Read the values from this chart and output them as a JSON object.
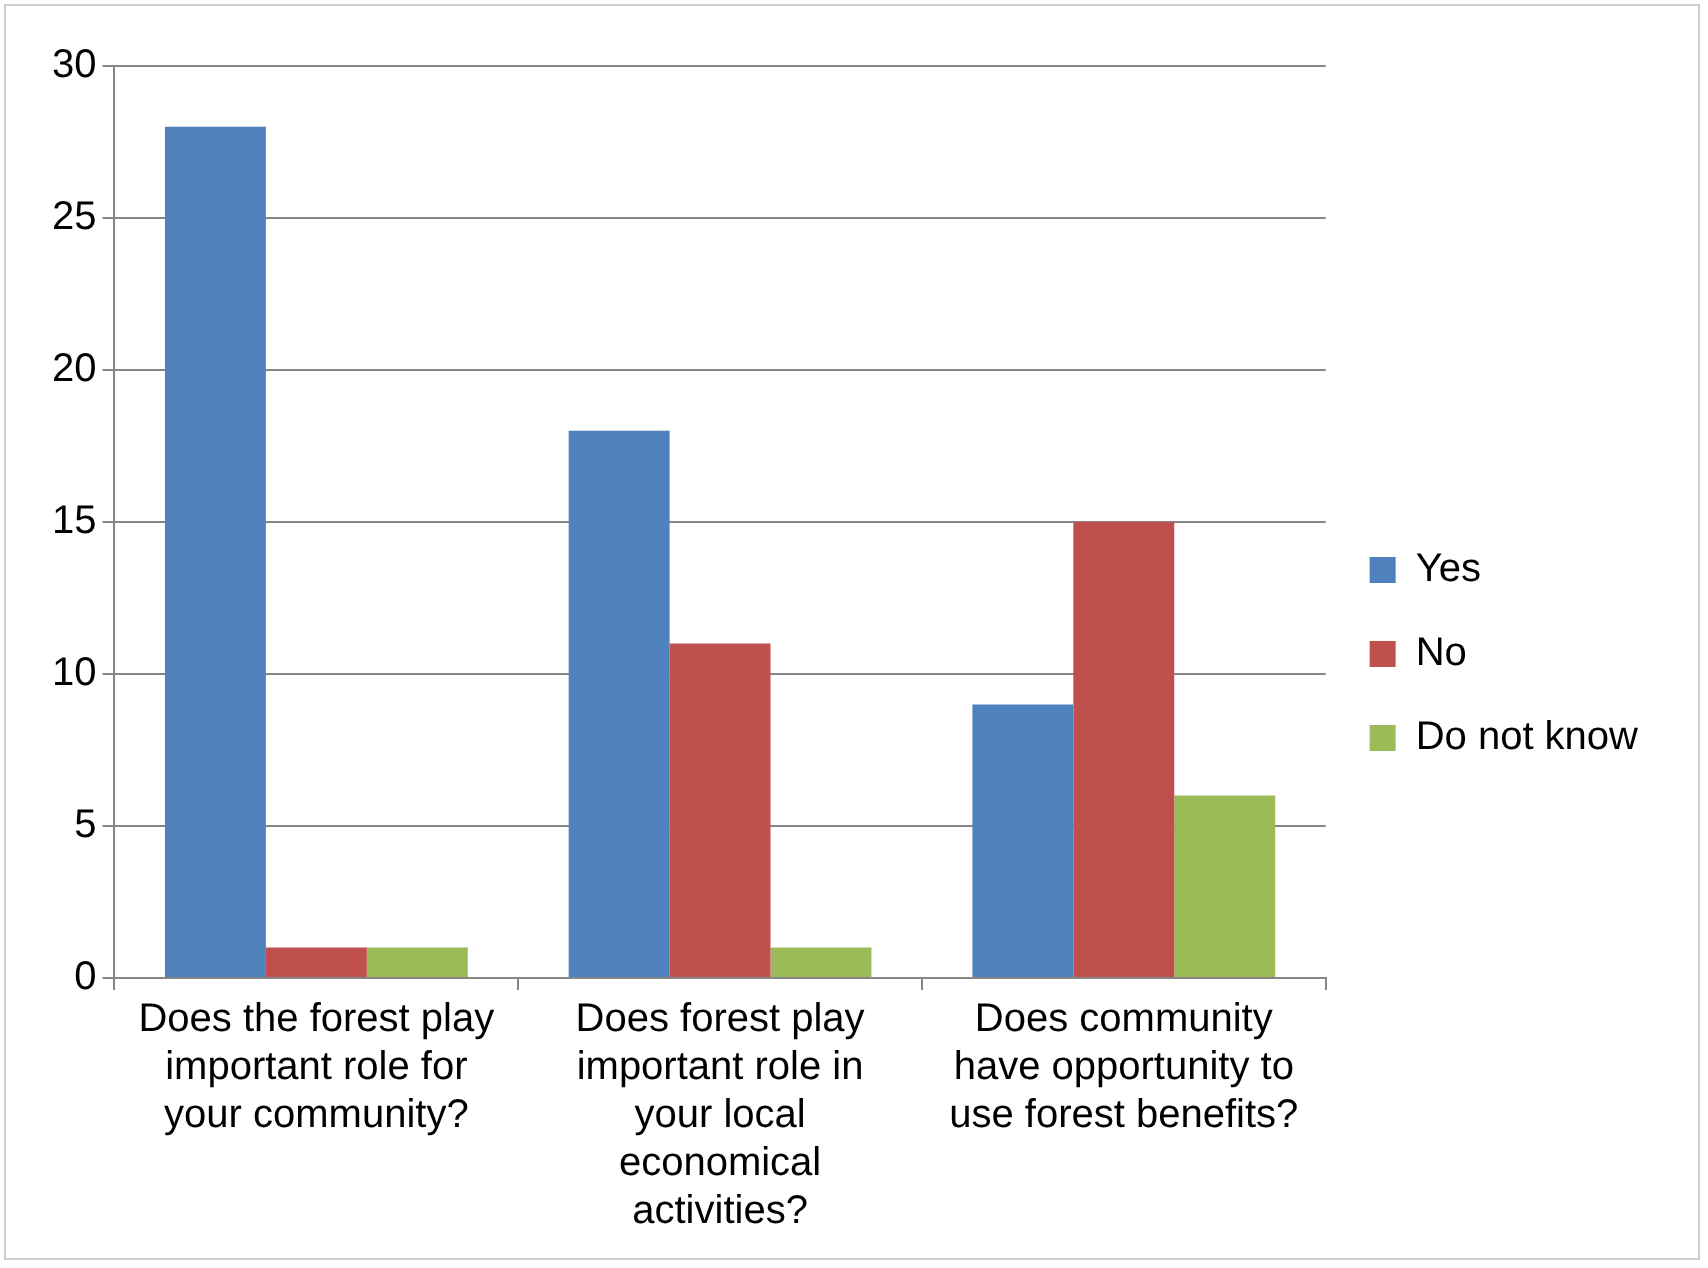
{
  "chart_data": {
    "type": "bar",
    "categories": [
      "Does the forest play important role for your community?",
      "Does forest play important role in your local economical activities?",
      "Does community have opportunity to use forest benefits?"
    ],
    "series": [
      {
        "name": "Yes",
        "color": "#4f81bd",
        "values": [
          28,
          18,
          9
        ]
      },
      {
        "name": "No",
        "color": "#c0504d",
        "values": [
          1,
          11,
          15
        ]
      },
      {
        "name": "Do not know",
        "color": "#9bbb59",
        "values": [
          1,
          1,
          6
        ]
      }
    ],
    "ylim": [
      0,
      30
    ],
    "yticks": [
      0,
      5,
      10,
      15,
      20,
      25,
      30
    ],
    "grid": "y",
    "legend": "right"
  }
}
